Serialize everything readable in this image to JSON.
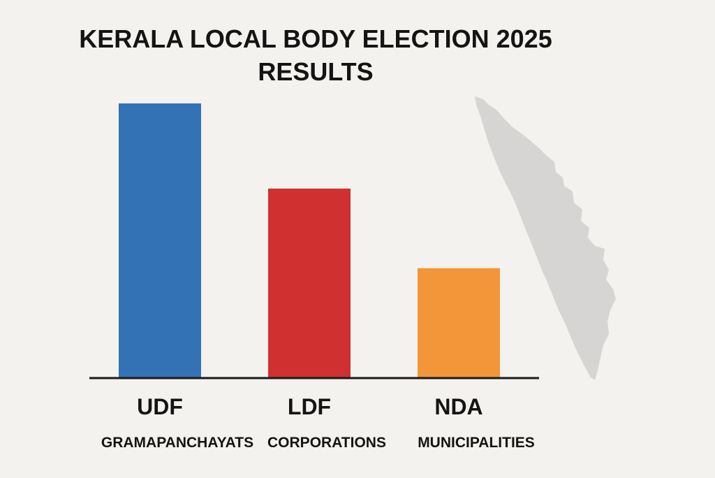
{
  "chart_data": {
    "type": "bar",
    "title_lines": [
      "KERALA LOCAL BODY ELECTION 2025",
      "RESULTS"
    ],
    "categories": [
      "UDF",
      "LDF",
      "NDA"
    ],
    "category_sublabels": [
      "GRAMAPANCHAYATS",
      "CORPORATIONS",
      "MUNICIPALITIES"
    ],
    "values": [
      100,
      69,
      40
    ],
    "ylim": [
      0,
      100
    ],
    "colors": [
      "#3372b4",
      "#d0302f",
      "#f29639"
    ],
    "grid": false,
    "legend": "none",
    "decoration": "kerala-map-silhouette"
  }
}
